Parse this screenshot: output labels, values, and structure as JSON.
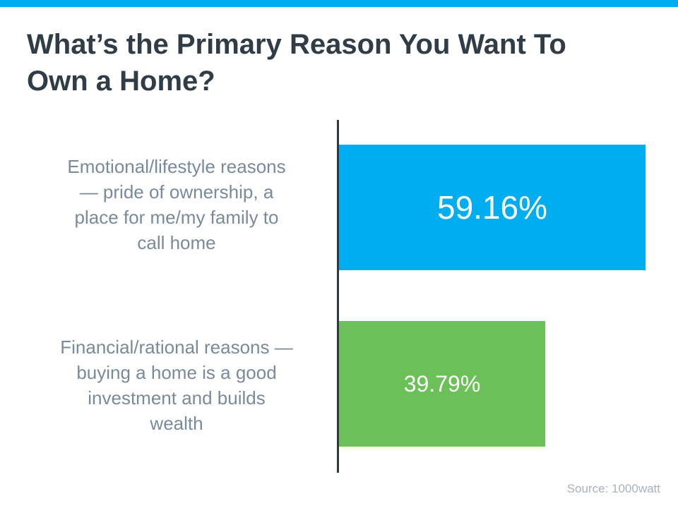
{
  "page": {
    "title_lines": [
      "What’s the Primary Reason You Want To",
      "Own a Home?"
    ],
    "source": "Source: 1000watt"
  },
  "theme": {
    "accent_blue": "#00AEEF",
    "bar_green": "#6BC158",
    "title_color": "#303C46",
    "axis_color": "#2E3944",
    "category_label_color": "#7A8A9D",
    "value_text_color": "#FFFFFF",
    "source_color": "#A8B2BC"
  },
  "chart_data": {
    "type": "bar",
    "orientation": "horizontal",
    "title": "What’s the Primary Reason You Want To Own a Home?",
    "categories": [
      "Emotional/lifestyle reasons — pride of ownership, a place for me/my family to call home",
      "Financial/rational reasons — buying a home is a good investment and builds wealth"
    ],
    "category_lines": [
      [
        "Emotional/lifestyle reasons",
        "— pride of ownership, a",
        "place for me/my family to",
        "call home"
      ],
      [
        "Financial/rational reasons —",
        "buying a home is a good",
        "investment and builds",
        "wealth"
      ]
    ],
    "values": [
      59.16,
      39.79
    ],
    "value_labels": [
      "59.16%",
      "39.79%"
    ],
    "bar_colors": [
      "#00AEEF",
      "#6BC158"
    ],
    "xlabel": "",
    "ylabel": "",
    "xlim": [
      0,
      62.7
    ],
    "grid": false,
    "legend": false,
    "value_label_position": "center",
    "source": "Source: 1000watt"
  }
}
